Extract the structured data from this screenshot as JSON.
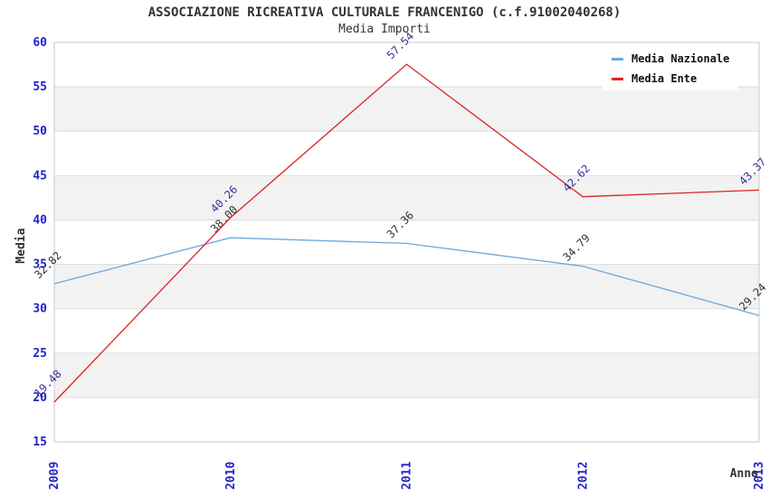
{
  "header": {
    "title": "ASSOCIAZIONE RICREATIVA CULTURALE FRANCENIGO (c.f.91002040268)",
    "subtitle": "Media Importi"
  },
  "chart_data": {
    "type": "line",
    "x": [
      "2009",
      "2010",
      "2011",
      "2012",
      "2013"
    ],
    "xlabel": "Anno",
    "ylabel": "Media",
    "ylim": [
      15,
      60
    ],
    "ytick_step": 5,
    "grid": "horizontal-only",
    "banded_background": true,
    "legend_position": "top-right",
    "series": [
      {
        "name": "Media Nazionale",
        "color": "#6fa8dc",
        "label_color": "#333333",
        "values": [
          32.82,
          38.0,
          37.36,
          34.79,
          29.24
        ]
      },
      {
        "name": "Media Ente",
        "color": "#dd2222",
        "label_color": "#333399",
        "values": [
          19.48,
          40.26,
          57.54,
          42.62,
          43.37
        ]
      }
    ]
  },
  "colors": {
    "tick_label": "#2222cc",
    "band_fill": "#f2f2f2",
    "grid_line": "#dddddd",
    "plot_border": "#c8c8c8",
    "axis_title": "#333333",
    "background": "#ffffff"
  }
}
